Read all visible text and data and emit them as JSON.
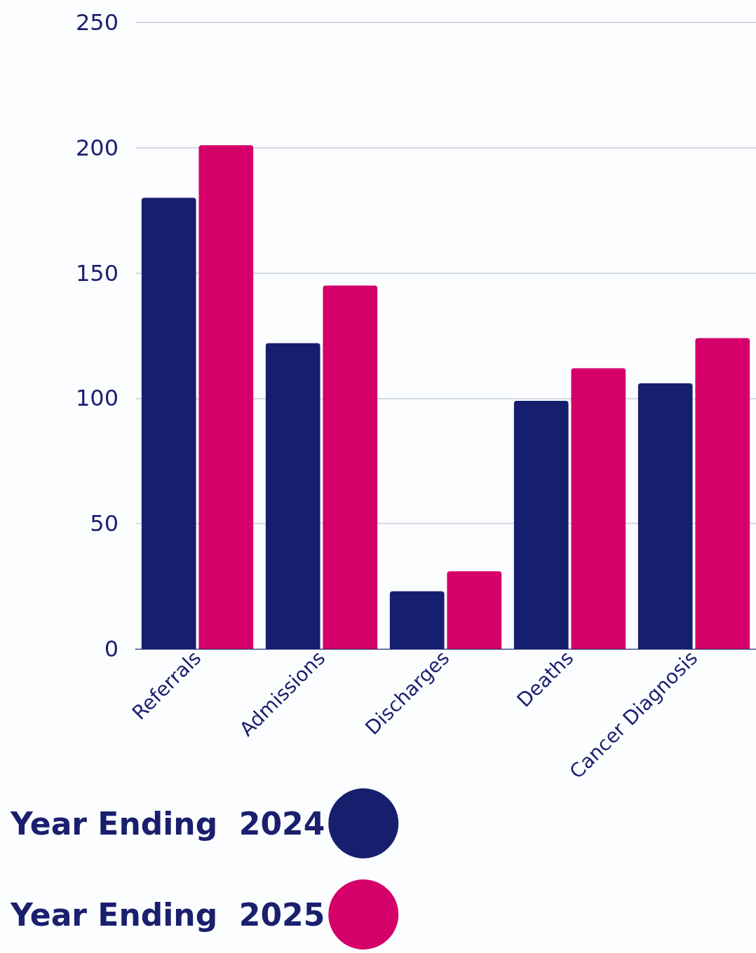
{
  "chart_data": {
    "type": "bar",
    "categories": [
      "Referrals",
      "Admissions",
      "Discharges",
      "Deaths",
      "Cancer Diagnosis"
    ],
    "series": [
      {
        "name": "Year Ending  2024",
        "color": "#161f6e",
        "values": [
          180,
          122,
          23,
          99,
          106
        ]
      },
      {
        "name": "Year Ending  2025",
        "color": "#d6006a",
        "values": [
          201,
          145,
          31,
          112,
          124
        ]
      }
    ],
    "ylim": [
      0,
      250
    ],
    "yticks": [
      0,
      50,
      100,
      150,
      200,
      250
    ],
    "grid": "y",
    "legend": "bottom left"
  }
}
